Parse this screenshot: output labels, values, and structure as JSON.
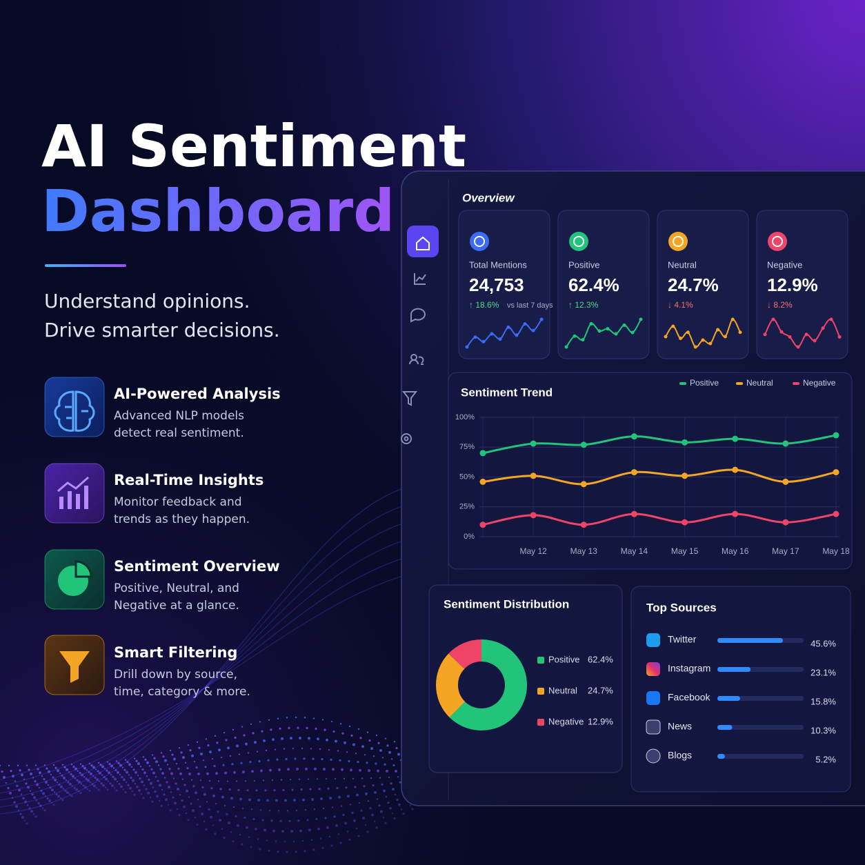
{
  "hero": {
    "title_line1": "AI Sentiment",
    "title_line2": "Dashboard",
    "tagline": [
      "Understand opinions.",
      "Drive smarter decisions."
    ]
  },
  "features": [
    {
      "title": "AI-Powered Analysis",
      "description": [
        "Advanced NLP models",
        "detect real sentiment."
      ]
    },
    {
      "title": "Real-Time Insights",
      "description": [
        "Monitor feedback and",
        "trends as they happen."
      ]
    },
    {
      "title": "Sentiment Overview",
      "description": [
        "Positive, Neutral, and",
        "Negative at a glance."
      ]
    },
    {
      "title": "Smart Filtering",
      "description": [
        "Drill down by source,",
        "time, category & more."
      ]
    }
  ],
  "dashboard": {
    "overview_title": "Overview",
    "kpis": [
      {
        "label": "Total Mentions",
        "value": "24,753",
        "change": "↑ 18.6%",
        "change_note": "vs last 7 days",
        "color": "#3b6cf6",
        "change_color": "#4ade80",
        "sparkline": [
          20,
          35,
          28,
          40,
          32,
          50,
          38,
          55,
          45,
          62
        ]
      },
      {
        "label": "Positive",
        "value": "62.4%",
        "change": "↑ 12.3%",
        "color": "#22c47a",
        "change_color": "#4ade80",
        "sparkline": [
          30,
          45,
          40,
          62,
          52,
          55,
          48,
          60,
          50,
          68
        ]
      },
      {
        "label": "Neutral",
        "value": "24.7%",
        "change": "↓ 4.1%",
        "color": "#f5a524",
        "change_color": "#f87171",
        "sparkline": [
          50,
          62,
          48,
          55,
          38,
          46,
          42,
          58,
          50,
          70,
          55
        ]
      },
      {
        "label": "Negative",
        "value": "12.9%",
        "change": "↓ 8.2%",
        "color": "#ef4468",
        "change_color": "#f87171",
        "sparkline": [
          50,
          62,
          52,
          48,
          40,
          50,
          45,
          55,
          62,
          48
        ]
      }
    ],
    "trend": {
      "type": "line",
      "title": "Sentiment Trend",
      "categories": [
        null,
        "May 12",
        "May 13",
        "May 14",
        "May 15",
        "May 16",
        "May 17",
        "May 18"
      ],
      "series": [
        {
          "name": "Positive",
          "color": "#22c47a",
          "values": [
            70,
            78,
            77,
            84,
            79,
            82,
            78,
            85
          ]
        },
        {
          "name": "Neutral",
          "color": "#f5a524",
          "values": [
            46,
            51,
            44,
            54,
            51,
            56,
            46,
            54
          ]
        },
        {
          "name": "Negative",
          "color": "#ef4468",
          "values": [
            10,
            18,
            10,
            19,
            12,
            19,
            12,
            19
          ]
        }
      ],
      "ylim": [
        0,
        100
      ],
      "yticks": [
        {
          "value": 0,
          "label": "0%"
        },
        {
          "value": 25,
          "label": "25%"
        },
        {
          "value": 50,
          "label": "50%"
        },
        {
          "value": 75,
          "label": "75%"
        },
        {
          "value": 100,
          "label": "100%"
        }
      ],
      "grid": true,
      "legend": "top-right"
    },
    "distribution": {
      "type": "pie",
      "title": "Sentiment Distribution",
      "categories": [
        "Positive",
        "Neutral",
        "Negative"
      ],
      "values": [
        62.4,
        24.7,
        12.9
      ],
      "value_labels": [
        "62.4%",
        "24.7%",
        "12.9%"
      ],
      "colors": [
        "#22c47a",
        "#f5a524",
        "#ef4468"
      ],
      "donut": true
    },
    "sources": {
      "type": "bar",
      "title": "Top Sources",
      "categories": [
        "Twitter",
        "Instagram",
        "Facebook",
        "News",
        "Blogs"
      ],
      "values": [
        45.6,
        23.1,
        15.8,
        10.3,
        5.2
      ],
      "value_labels": [
        "45.6%",
        "23.1%",
        "15.8%",
        "10.3%",
        "5.2%"
      ],
      "xlim": [
        0,
        60
      ],
      "color": "#2f8cff"
    }
  }
}
